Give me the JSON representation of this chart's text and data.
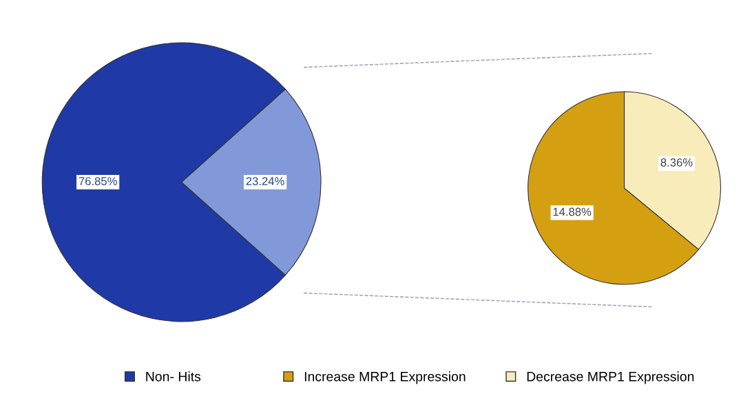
{
  "chart_data": [
    {
      "type": "pie",
      "categories": [
        "Non- Hits",
        null
      ],
      "values": [
        76.85,
        23.24
      ],
      "colors": [
        "#1f3aa6",
        "#8299d9"
      ],
      "value_labels": [
        "76.85%",
        "23.24%"
      ],
      "legend": "bottom"
    },
    {
      "type": "pie",
      "categories": [
        "Increase MRP1 Expression",
        "Decrease MRP1 Expression"
      ],
      "values": [
        14.88,
        8.36
      ],
      "colors": [
        "#d4a012",
        "#f9ecbb"
      ],
      "value_labels": [
        "14.88%",
        "8.36%"
      ],
      "legend": "bottom"
    }
  ]
}
